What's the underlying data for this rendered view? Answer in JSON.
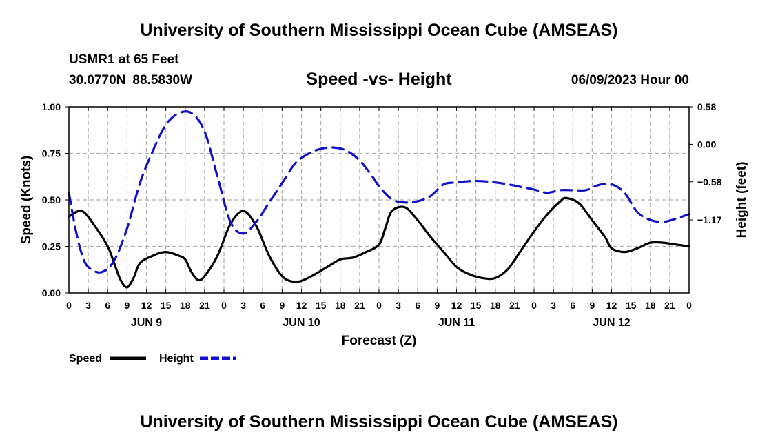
{
  "header": {
    "title": "University of Southern Mississippi Ocean Cube (AMSEAS)",
    "station": "USMR1 at 65 Feet",
    "lat": "30.0770N",
    "lon": "88.5830W",
    "subtitle": "Speed -vs- Height",
    "datetime": "06/09/2023 Hour 00"
  },
  "footer": {
    "title": "University of Southern Mississippi Ocean Cube (AMSEAS)"
  },
  "chart_data": {
    "type": "line",
    "xlabel": "Forecast (Z)",
    "ylabel_left": "Speed (Knots)",
    "ylabel_right": "Height (feet)",
    "x_range_hours": [
      0,
      96
    ],
    "ylim_left": [
      0,
      1.0
    ],
    "ylim_right": [
      -2.3,
      0.58
    ],
    "left_ticks": [
      "0.00",
      "0.25",
      "0.50",
      "0.75",
      "1.00"
    ],
    "left_tick_values": [
      0,
      0.25,
      0.5,
      0.75,
      1.0
    ],
    "right_ticks": [
      "0.58",
      "0.00",
      "−0.58",
      "−1.17"
    ],
    "right_tick_values": [
      0.58,
      0.0,
      -0.58,
      -1.17
    ],
    "x_tick_labels": [
      "0",
      "3",
      "6",
      "9",
      "12",
      "15",
      "18",
      "21",
      "0",
      "3",
      "6",
      "9",
      "12",
      "15",
      "18",
      "21",
      "0",
      "3",
      "6",
      "9",
      "12",
      "15",
      "18",
      "21",
      "0",
      "3",
      "6",
      "9",
      "12",
      "15",
      "18",
      "21",
      "0"
    ],
    "day_labels": [
      {
        "label": "JUN 9",
        "hour": 12
      },
      {
        "label": "JUN 10",
        "hour": 36
      },
      {
        "label": "JUN 11",
        "hour": 60
      },
      {
        "label": "JUN 12",
        "hour": 84
      }
    ],
    "grid": true,
    "legend": [
      "Speed",
      "Height"
    ],
    "series": [
      {
        "name": "Speed",
        "color": "#000000",
        "style": "solid",
        "axis": "left",
        "points": [
          [
            0,
            0.41
          ],
          [
            2,
            0.44
          ],
          [
            4,
            0.36
          ],
          [
            6,
            0.25
          ],
          [
            7,
            0.16
          ],
          [
            8,
            0.07
          ],
          [
            9,
            0.03
          ],
          [
            10,
            0.08
          ],
          [
            11,
            0.16
          ],
          [
            13,
            0.2
          ],
          [
            15,
            0.22
          ],
          [
            17,
            0.2
          ],
          [
            18,
            0.18
          ],
          [
            19,
            0.11
          ],
          [
            20,
            0.07
          ],
          [
            21,
            0.09
          ],
          [
            23,
            0.2
          ],
          [
            25,
            0.37
          ],
          [
            27,
            0.44
          ],
          [
            29,
            0.36
          ],
          [
            31,
            0.2
          ],
          [
            33,
            0.09
          ],
          [
            35,
            0.06
          ],
          [
            37,
            0.08
          ],
          [
            40,
            0.14
          ],
          [
            42,
            0.18
          ],
          [
            44,
            0.19
          ],
          [
            46,
            0.22
          ],
          [
            48,
            0.26
          ],
          [
            49,
            0.35
          ],
          [
            50,
            0.44
          ],
          [
            52,
            0.46
          ],
          [
            54,
            0.39
          ],
          [
            56,
            0.3
          ],
          [
            58,
            0.22
          ],
          [
            60,
            0.14
          ],
          [
            62,
            0.1
          ],
          [
            64,
            0.08
          ],
          [
            66,
            0.08
          ],
          [
            68,
            0.13
          ],
          [
            70,
            0.23
          ],
          [
            72,
            0.33
          ],
          [
            74,
            0.42
          ],
          [
            76,
            0.49
          ],
          [
            77,
            0.51
          ],
          [
            79,
            0.48
          ],
          [
            81,
            0.39
          ],
          [
            83,
            0.3
          ],
          [
            84,
            0.24
          ],
          [
            86,
            0.22
          ],
          [
            88,
            0.24
          ],
          [
            90,
            0.27
          ],
          [
            92,
            0.27
          ],
          [
            94,
            0.26
          ],
          [
            96,
            0.25
          ]
        ]
      },
      {
        "name": "Height",
        "color": "#1111cc",
        "style": "dashed",
        "axis": "right",
        "points": [
          [
            0,
            -0.75
          ],
          [
            1,
            -1.3
          ],
          [
            2,
            -1.7
          ],
          [
            3,
            -1.9
          ],
          [
            5,
            -1.98
          ],
          [
            7,
            -1.8
          ],
          [
            9,
            -1.3
          ],
          [
            11,
            -0.6
          ],
          [
            13,
            -0.1
          ],
          [
            15,
            0.3
          ],
          [
            17,
            0.48
          ],
          [
            19,
            0.48
          ],
          [
            21,
            0.2
          ],
          [
            23,
            -0.5
          ],
          [
            25,
            -1.2
          ],
          [
            27,
            -1.38
          ],
          [
            29,
            -1.2
          ],
          [
            31,
            -0.9
          ],
          [
            33,
            -0.6
          ],
          [
            35,
            -0.3
          ],
          [
            37,
            -0.15
          ],
          [
            39,
            -0.07
          ],
          [
            41,
            -0.05
          ],
          [
            43,
            -0.1
          ],
          [
            45,
            -0.25
          ],
          [
            47,
            -0.5
          ],
          [
            48,
            -0.65
          ],
          [
            50,
            -0.85
          ],
          [
            52,
            -0.9
          ],
          [
            54,
            -0.88
          ],
          [
            56,
            -0.8
          ],
          [
            58,
            -0.62
          ],
          [
            60,
            -0.59
          ],
          [
            62,
            -0.57
          ],
          [
            64,
            -0.57
          ],
          [
            66,
            -0.59
          ],
          [
            68,
            -0.62
          ],
          [
            70,
            -0.66
          ],
          [
            72,
            -0.7
          ],
          [
            74,
            -0.75
          ],
          [
            76,
            -0.71
          ],
          [
            78,
            -0.71
          ],
          [
            80,
            -0.71
          ],
          [
            82,
            -0.63
          ],
          [
            84,
            -0.62
          ],
          [
            86,
            -0.75
          ],
          [
            88,
            -1.05
          ],
          [
            90,
            -1.17
          ],
          [
            92,
            -1.2
          ],
          [
            94,
            -1.15
          ],
          [
            96,
            -1.08
          ]
        ]
      }
    ]
  }
}
